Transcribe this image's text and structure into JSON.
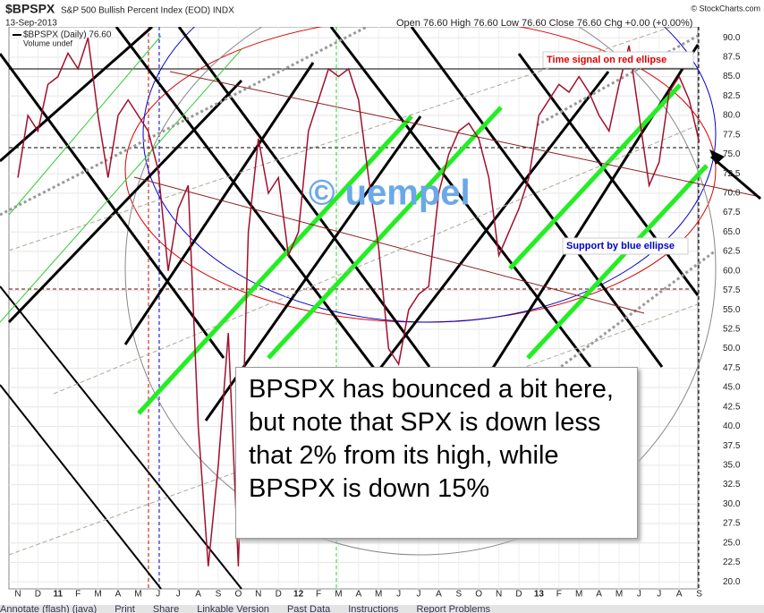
{
  "chart_data": {
    "type": "line",
    "title": "$BPSPX",
    "subtitle": "S&P 500 Bullish Percent Index (EOD) INDX",
    "date": "13-Sep-2013",
    "quote": "Open 76.60  High 76.60  Low 76.60  Close 76.60  Chg +0.00 (+0.00%)",
    "source": "© StockCharts.com",
    "volume_note": "Volume undef",
    "watermark": "© uempel",
    "annotations": [
      "Time signal on red ellipse",
      "Support by blue ellipse",
      "BPSPX has bounced a bit here, but note that SPX is down less that 2% from its high, while BPSPX is down 15%"
    ],
    "toolbar": [
      "Annotate (flash) (java)",
      "Print",
      "Share",
      "Linkable Version",
      "Past Data",
      "Instructions",
      "Report Problems"
    ],
    "categories": [
      "N",
      null,
      "D",
      null,
      "11",
      null,
      "F",
      null,
      "M",
      null,
      "A",
      null,
      "M",
      null,
      "J",
      null,
      "J",
      null,
      "A",
      null,
      "S",
      null,
      "O",
      null,
      "N",
      null,
      "D",
      null,
      "12",
      null,
      "F",
      null,
      "M",
      null,
      "A",
      null,
      "M",
      null,
      "J",
      null,
      "J",
      null,
      "A",
      null,
      "S",
      null,
      "O",
      null,
      "N",
      null,
      "D",
      null,
      "13",
      null,
      "F",
      null,
      "M",
      null,
      "A",
      null,
      "M",
      null,
      "J",
      null,
      "J",
      null,
      "A",
      null,
      "S"
    ],
    "series": [
      {
        "name": "$BPSPX (Daily) 76.60",
        "color": "#a0102e",
        "values": [
          72,
          80,
          78,
          84,
          85,
          88,
          86,
          90,
          80,
          72,
          80,
          82,
          80,
          78,
          73,
          60,
          68,
          71,
          40,
          22,
          35,
          52,
          22,
          65,
          77,
          70,
          72,
          62,
          65,
          78,
          82,
          86,
          85,
          86,
          82,
          72,
          63,
          50,
          48,
          55,
          57,
          58,
          70,
          75,
          78,
          79,
          77,
          72,
          62,
          65,
          68,
          72,
          80,
          82,
          84,
          83,
          85,
          83,
          80,
          78,
          84,
          89,
          80,
          71,
          74,
          83,
          85,
          82,
          76.6
        ]
      }
    ],
    "ylim": [
      19.1,
      91.4
    ],
    "yticks": [
      {
        "value": 20,
        "label": "20.0"
      },
      22.5,
      {
        "value": 25,
        "label": "25.0"
      },
      27.5,
      {
        "value": 30,
        "label": "30.0"
      },
      32.5,
      {
        "value": 35,
        "label": "35.0"
      },
      37.5,
      {
        "value": 40,
        "label": "40.0"
      },
      42.5,
      {
        "value": 45,
        "label": "45.0"
      },
      47.5,
      {
        "value": 50,
        "label": "50.0"
      },
      52.5,
      {
        "value": 55,
        "label": "55.0"
      },
      57.5,
      {
        "value": 60,
        "label": "60.0"
      },
      62.5,
      {
        "value": 65,
        "label": "65.0"
      },
      67.5,
      {
        "value": 70,
        "label": "70.0"
      },
      72.5,
      {
        "value": 75,
        "label": "75.0"
      },
      77.5,
      {
        "value": 80,
        "label": "80.0"
      },
      82.5,
      {
        "value": 85,
        "label": "85.0"
      },
      87.5,
      {
        "value": 90,
        "label": "90.0"
      }
    ],
    "grid": true
  }
}
